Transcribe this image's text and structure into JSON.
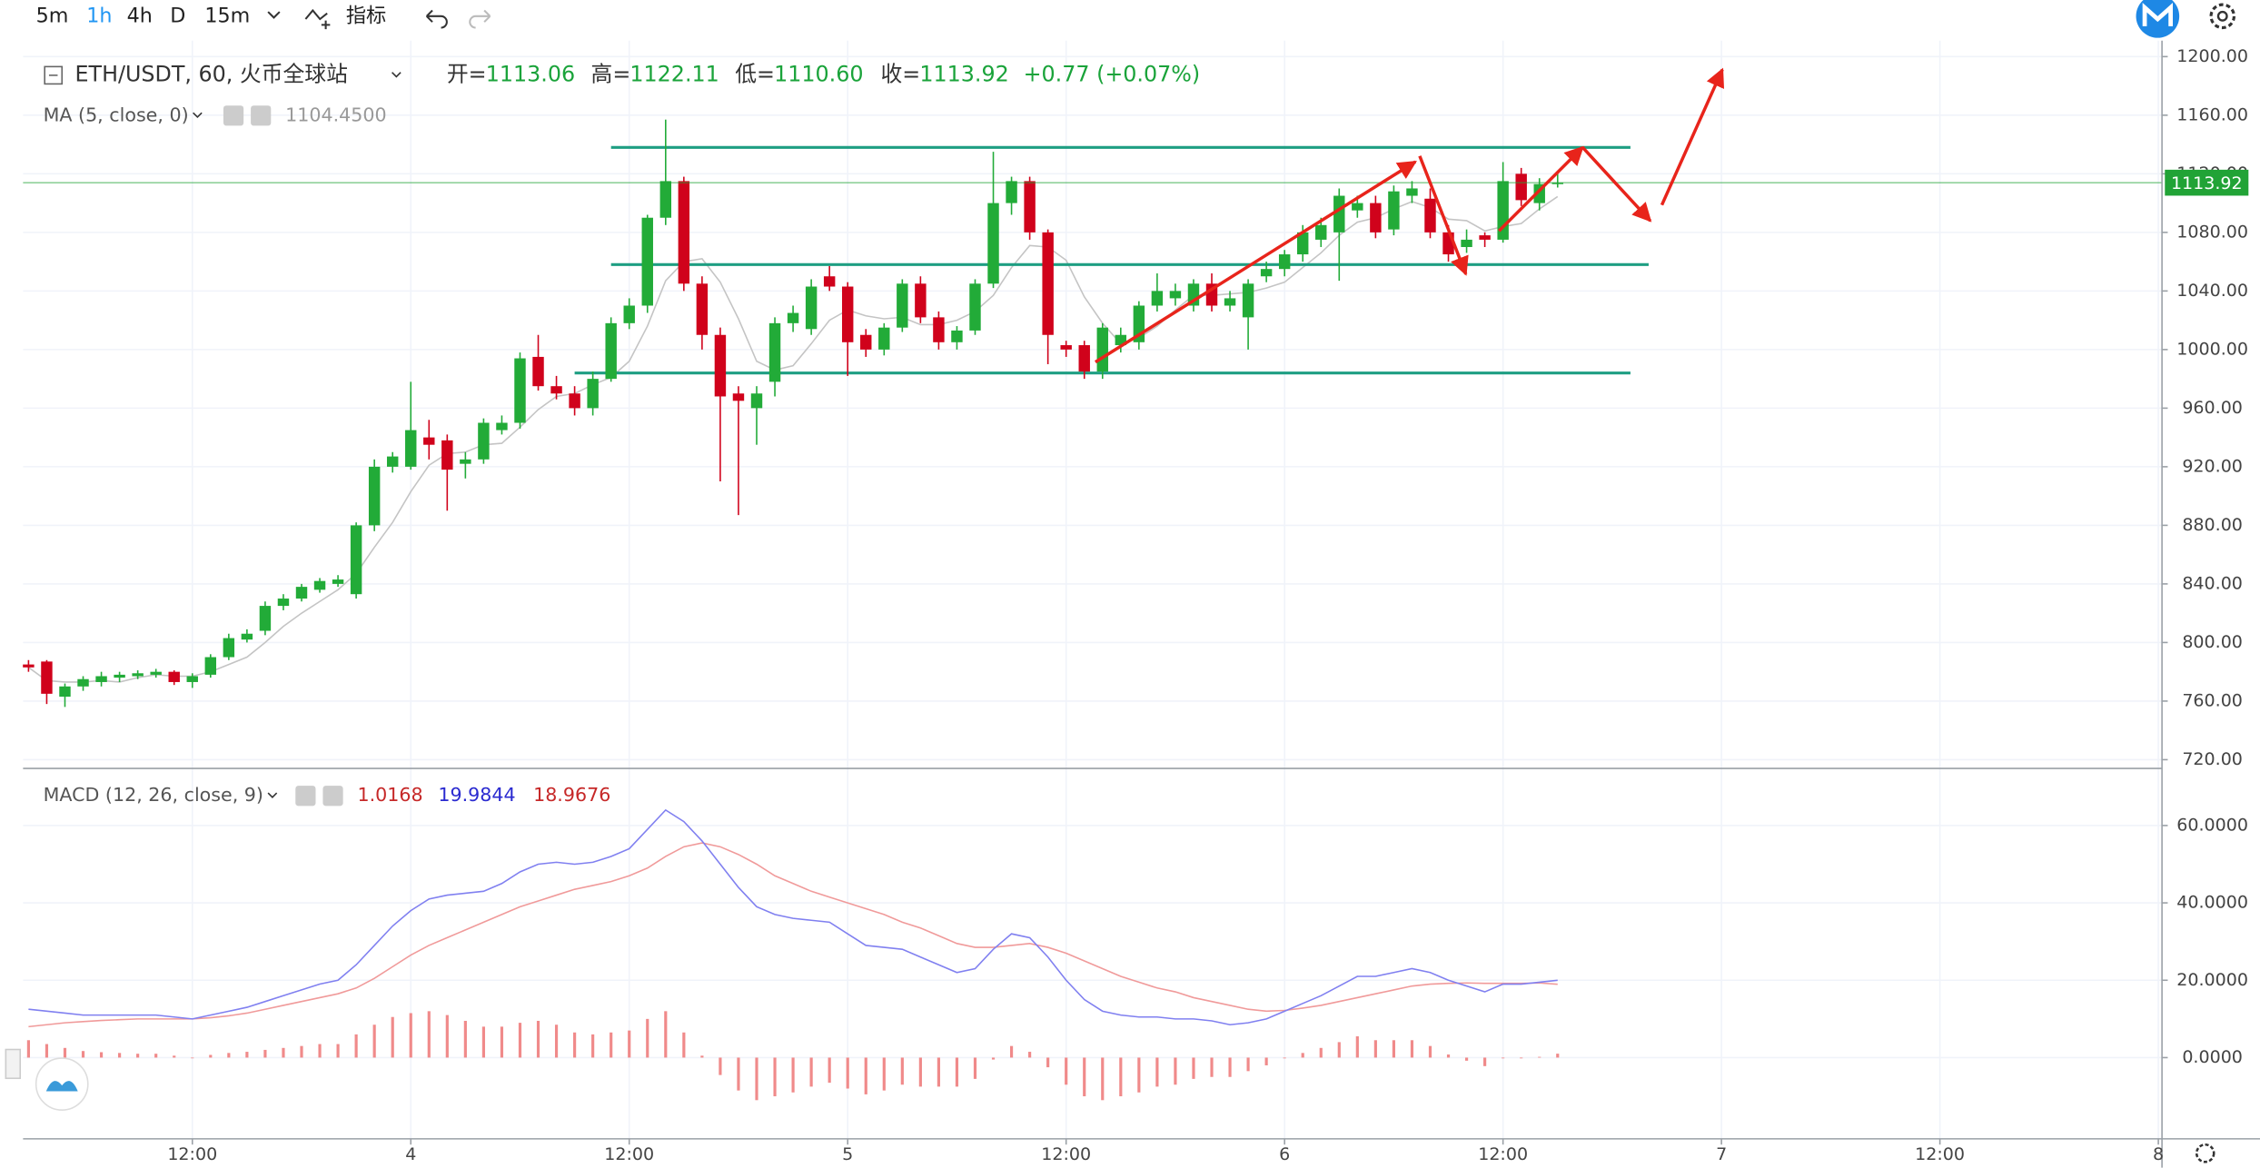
{
  "toolbar": {
    "intervals": [
      "5m",
      "1h",
      "4h",
      "D",
      "15m"
    ],
    "indicators": "指标"
  },
  "chart_data": [
    {
      "type": "candlestick",
      "title": "ETH/USDT, 60, 火币全球站",
      "open_label": "开=",
      "high_label": "高=",
      "low_label": "低=",
      "close_label": "收=",
      "ohlc_labels": {
        "open": "1113.06",
        "high": "1122.11",
        "low": "1110.60",
        "close": "1113.92"
      },
      "change": "+0.77 (+0.07%)",
      "up_color": "#22ab38",
      "down_color": "#d0021b",
      "x": [
        -21,
        -20,
        -19,
        -18,
        -17,
        -16,
        -15,
        -14,
        -13,
        -12,
        -11,
        -10,
        -9,
        -8,
        -7,
        -6,
        -5,
        -4,
        -3,
        -2,
        -1,
        0,
        1,
        2,
        3,
        4,
        5,
        6,
        7,
        8,
        9,
        10,
        11,
        12,
        13,
        14,
        15,
        16,
        17,
        18,
        19,
        20,
        21,
        22,
        23,
        24,
        25,
        26,
        27,
        28,
        29,
        30,
        31,
        32,
        33,
        34,
        35,
        36,
        37,
        38,
        39,
        40,
        41,
        42,
        43,
        44,
        45,
        46,
        47,
        48,
        49,
        50,
        51,
        52,
        53,
        54,
        55,
        56,
        57,
        58,
        59,
        60,
        61,
        62,
        63
      ],
      "open": [
        785,
        787,
        763,
        770,
        773,
        776,
        777,
        778,
        780,
        773,
        778,
        790,
        802,
        808,
        825,
        830,
        836,
        840,
        833,
        880,
        920,
        920,
        940,
        938,
        922,
        925,
        945,
        950,
        995,
        975,
        970,
        960,
        980,
        1018,
        1030,
        1090,
        1115,
        1045,
        1010,
        970,
        960,
        978,
        1018,
        1014,
        1050,
        1043,
        1010,
        1000,
        1015,
        1045,
        1022,
        1005,
        1013,
        1045,
        1100,
        1115,
        1080,
        1003,
        1003,
        985,
        1003,
        1005,
        1030,
        1035,
        1030,
        1045,
        1030,
        1022,
        1050,
        1055,
        1065,
        1075,
        1080,
        1095,
        1100,
        1082,
        1105,
        1103,
        1080,
        1070,
        1078,
        1075,
        1120,
        1100,
        1113.06
      ],
      "high": [
        788,
        788,
        772,
        777,
        780,
        780,
        781,
        782,
        781,
        779,
        792,
        806,
        809,
        828,
        833,
        840,
        844,
        846,
        882,
        925,
        930,
        978,
        952,
        942,
        930,
        953,
        955,
        998,
        1010,
        982,
        975,
        985,
        1022,
        1035,
        1092,
        1157,
        1118,
        1050,
        1015,
        975,
        975,
        1022,
        1030,
        1048,
        1057,
        1046,
        1014,
        1018,
        1048,
        1050,
        1026,
        1016,
        1048,
        1135,
        1118,
        1118,
        1082,
        1006,
        1006,
        1018,
        1015,
        1033,
        1052,
        1045,
        1048,
        1052,
        1040,
        1048,
        1060,
        1068,
        1085,
        1090,
        1110,
        1105,
        1105,
        1112,
        1115,
        1110,
        1085,
        1082,
        1080,
        1128,
        1124,
        1117,
        1122.11
      ],
      "low": [
        780,
        758,
        756,
        767,
        770,
        773,
        775,
        776,
        771,
        769,
        776,
        788,
        800,
        805,
        822,
        828,
        834,
        838,
        830,
        876,
        916,
        918,
        925,
        890,
        912,
        922,
        942,
        946,
        972,
        966,
        955,
        955,
        978,
        1014,
        1025,
        1085,
        1040,
        1000,
        910,
        887,
        935,
        968,
        1012,
        1010,
        1040,
        982,
        995,
        996,
        1012,
        1018,
        1000,
        1000,
        1010,
        1042,
        1092,
        1075,
        990,
        995,
        980,
        980,
        998,
        1000,
        1026,
        1030,
        1026,
        1026,
        1026,
        1000,
        1046,
        1050,
        1060,
        1070,
        1047,
        1090,
        1076,
        1078,
        1100,
        1076,
        1060,
        1066,
        1070,
        1073,
        1098,
        1095,
        1110.6
      ],
      "close": [
        783,
        765,
        770,
        775,
        777,
        778,
        779,
        780,
        773,
        777,
        790,
        803,
        806,
        825,
        830,
        838,
        842,
        843,
        880,
        920,
        927,
        945,
        935,
        918,
        925,
        950,
        950,
        994,
        975,
        970,
        960,
        980,
        1018,
        1030,
        1090,
        1115,
        1045,
        1010,
        968,
        965,
        970,
        1018,
        1025,
        1043,
        1043,
        1005,
        1000,
        1015,
        1045,
        1022,
        1005,
        1013,
        1045,
        1100,
        1115,
        1080,
        1010,
        1000,
        985,
        1015,
        1010,
        1030,
        1040,
        1040,
        1045,
        1030,
        1035,
        1045,
        1055,
        1065,
        1080,
        1085,
        1105,
        1100,
        1080,
        1108,
        1110,
        1080,
        1065,
        1075,
        1075,
        1115,
        1102,
        1113,
        1113.92
      ],
      "ma": {
        "name": "MA (5, close, 0)",
        "color": "#c4c4c4",
        "value_label": "1104.4500",
        "values": [
          783,
          774,
          773,
          773,
          774,
          773,
          776,
          778,
          777,
          777,
          780,
          785,
          790,
          800,
          811,
          820,
          828,
          836,
          847,
          865,
          882,
          903,
          921,
          929,
          930,
          935,
          936,
          947,
          959,
          968,
          970,
          976,
          981,
          992,
          1016,
          1047,
          1060,
          1062,
          1046,
          1021,
          992,
          986,
          989,
          1004,
          1020,
          1027,
          1023,
          1021,
          1022,
          1017,
          1017,
          1020,
          1026,
          1037,
          1056,
          1071,
          1070,
          1061,
          1036,
          1018,
          1004,
          1008,
          1016,
          1027,
          1037,
          1037,
          1038,
          1039,
          1042,
          1046,
          1056,
          1066,
          1078,
          1087,
          1090,
          1096,
          1101,
          1097,
          1089,
          1088,
          1081,
          1084,
          1086,
          1096,
          1104.45
        ]
      },
      "levels": {
        "color": "#1e9e82",
        "lines": [
          {
            "value": 1138,
            "from": 11,
            "to": 67
          },
          {
            "value": 1058,
            "from": 11,
            "to": 68
          },
          {
            "value": 984,
            "from": 9,
            "to": 67
          }
        ]
      },
      "last_price_color": "#21a336",
      "xlim": [
        -21.3,
        96.2
      ],
      "xticks": [
        {
          "value": -12,
          "label": "12:00"
        },
        {
          "value": 0,
          "label": "4"
        },
        {
          "value": 12,
          "label": "12:00"
        },
        {
          "value": 24,
          "label": "5"
        },
        {
          "value": 36,
          "label": "12:00"
        },
        {
          "value": 48,
          "label": "6"
        },
        {
          "value": 60,
          "label": "12:00"
        },
        {
          "value": 72,
          "label": "7"
        },
        {
          "value": 84,
          "label": "12:00"
        },
        {
          "value": 96,
          "label": "8"
        }
      ],
      "ylim": [
        714,
        1203
      ],
      "yticks": [
        {
          "value": 720,
          "label": "720.00"
        },
        {
          "value": 760,
          "label": "760.00"
        },
        {
          "value": 800,
          "label": "800.00"
        },
        {
          "value": 840,
          "label": "840.00"
        },
        {
          "value": 880,
          "label": "880.00"
        },
        {
          "value": 920,
          "label": "920.00"
        },
        {
          "value": 960,
          "label": "960.00"
        },
        {
          "value": 1000,
          "label": "1000.00"
        },
        {
          "value": 1040,
          "label": "1040.00"
        },
        {
          "value": 1080,
          "label": "1080.00"
        },
        {
          "value": 1120,
          "label": "1120.00"
        },
        {
          "value": 1160,
          "label": "1160.00"
        },
        {
          "value": 1200,
          "label": "1200.00"
        }
      ],
      "grid": true
    },
    {
      "type": "macd",
      "title": "MACD (12, 26, close, 9)",
      "histogram": {
        "color": "#f08a8a",
        "values": [
          4.5,
          3.5,
          2.5,
          1.7,
          1.4,
          1.2,
          1,
          1,
          0.5,
          0,
          0.7,
          1.2,
          1.5,
          2,
          2.5,
          3,
          3.5,
          3.5,
          6,
          8.5,
          10.5,
          11.5,
          12,
          11,
          9.5,
          8,
          8,
          9,
          9.5,
          8.5,
          6.5,
          6,
          6.5,
          7,
          10,
          12,
          6.5,
          0.5,
          -4.5,
          -8.5,
          -11,
          -10,
          -9,
          -7.5,
          -6.5,
          -8,
          -9.5,
          -8.5,
          -7,
          -7.5,
          -7.5,
          -7.5,
          -5.5,
          -0.5,
          3,
          1.5,
          -2.5,
          -7,
          -10,
          -11,
          -10,
          -9,
          -7.5,
          -7,
          -5.5,
          -5,
          -5,
          -3.5,
          -2,
          -0.2,
          1.2,
          2.5,
          4,
          5.5,
          4.5,
          4.5,
          4.5,
          3,
          0.8,
          -0.8,
          -2.2,
          -0.2,
          -0.2,
          0.2,
          1.0168
        ]
      },
      "dif": {
        "color": "#8080f0",
        "values": [
          12.5,
          12,
          11.5,
          11,
          11,
          11,
          11,
          11,
          10.5,
          10,
          11,
          12,
          13,
          14.5,
          16,
          17.5,
          19,
          20,
          24,
          29,
          34,
          38,
          41,
          42,
          42.5,
          43,
          45,
          48,
          50,
          50.5,
          50,
          50.5,
          52,
          54,
          59,
          64,
          61,
          56,
          50,
          44,
          39,
          37,
          36,
          35.5,
          35,
          32,
          29,
          28.5,
          28,
          26,
          24,
          22,
          23,
          28,
          32,
          31,
          26,
          20,
          15,
          12,
          11,
          10.5,
          10.5,
          10,
          10,
          9.5,
          8.5,
          9,
          10,
          12,
          14,
          16,
          18.5,
          21,
          21,
          22,
          23,
          22,
          20,
          18.5,
          17,
          19,
          19,
          19.5,
          19.9844
        ]
      },
      "dea": {
        "color": "#f09a9a",
        "values": [
          8,
          8.5,
          9,
          9.3,
          9.6,
          9.8,
          10,
          10,
          10,
          10,
          10.3,
          10.8,
          11.5,
          12.5,
          13.5,
          14.5,
          15.5,
          16.5,
          18,
          20.5,
          23.5,
          26.5,
          29,
          31,
          33,
          35,
          37,
          39,
          40.5,
          42,
          43.5,
          44.5,
          45.5,
          47,
          49,
          52,
          54.5,
          55.5,
          54.5,
          52.5,
          50,
          47,
          45,
          43,
          41.5,
          40,
          38.5,
          37,
          35,
          33.5,
          31.5,
          29.5,
          28.5,
          28.5,
          29,
          29.5,
          28.5,
          27,
          25,
          23,
          21,
          19.5,
          18,
          17,
          15.5,
          14.5,
          13.5,
          12.5,
          12,
          12.2,
          12.8,
          13.5,
          14.5,
          15.5,
          16.5,
          17.5,
          18.5,
          19,
          19.2,
          19.3,
          19.2,
          19.2,
          19.2,
          19.3,
          18.9676
        ]
      },
      "ylim": [
        -21,
        74
      ],
      "yticks": [
        {
          "value": 0,
          "label": "0.0000"
        },
        {
          "value": 20,
          "label": "20.0000"
        },
        {
          "value": 40,
          "label": "40.0000"
        },
        {
          "value": 60,
          "label": "60.0000"
        }
      ],
      "grid": true
    }
  ]
}
